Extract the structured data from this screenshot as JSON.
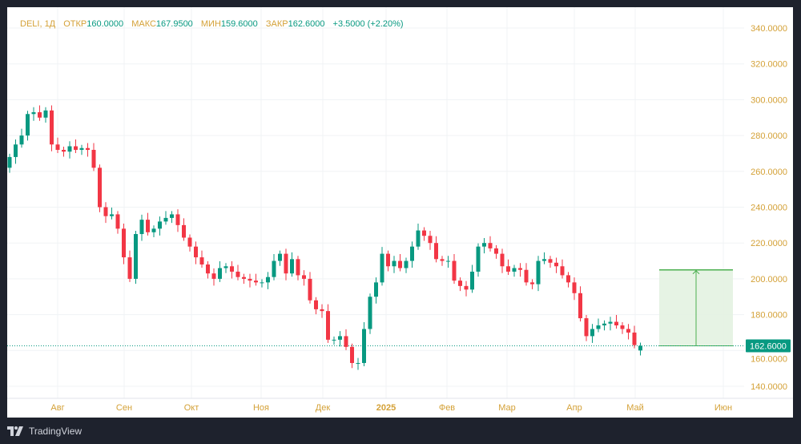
{
  "legend": {
    "symbol": "DELI, 1Д",
    "open_label": "ОТКР",
    "open": "160.0000",
    "high_label": "МАКС",
    "high": "167.9500",
    "low_label": "МИН",
    "low": "159.6000",
    "close_label": "ЗАКР",
    "close": "162.6000",
    "change": "+3.5000 (+2.20%)"
  },
  "brand": {
    "name": "TradingView"
  },
  "colors": {
    "up": "#089981",
    "down": "#f23645",
    "axis_text": "#d4a137",
    "projection_fill": "#e3f2e1",
    "projection_line": "#4caf50"
  },
  "chart_data": {
    "type": "candlestick",
    "symbol": "DELI",
    "interval": "1Д",
    "ylim": [
      140,
      340
    ],
    "y_ticks": [
      "140.0000",
      "160.0000",
      "180.0000",
      "200.0000",
      "220.0000",
      "240.0000",
      "260.0000",
      "280.0000",
      "300.0000",
      "320.0000",
      "340.0000"
    ],
    "y_tick_values": [
      140,
      160,
      180,
      200,
      220,
      240,
      260,
      280,
      300,
      320,
      340
    ],
    "x_labels": [
      "Авг",
      "Сен",
      "Окт",
      "Ноя",
      "Дек",
      "2025",
      "Фев",
      "Мар",
      "Апр",
      "Май",
      "Июн"
    ],
    "first_open": 262,
    "last_open": 160,
    "closes": [
      268,
      275,
      280,
      292,
      293,
      290,
      294,
      275,
      272,
      271,
      274,
      272,
      273,
      272,
      262,
      240,
      235,
      236,
      228,
      212,
      200,
      225,
      233,
      226,
      228,
      232,
      234,
      236,
      230,
      223,
      218,
      212,
      208,
      203,
      200,
      206,
      207,
      204,
      201,
      200,
      199,
      198,
      198,
      201,
      210,
      214,
      203,
      211,
      202,
      200,
      188,
      183,
      182,
      166,
      166,
      168,
      162,
      153,
      153,
      172,
      190,
      198,
      214,
      207,
      210,
      206,
      210,
      218,
      227,
      224,
      220,
      211,
      210,
      210,
      199,
      196,
      194,
      204,
      218,
      220,
      217,
      214,
      207,
      204,
      206,
      205,
      198,
      197,
      210,
      211,
      209,
      207,
      202,
      198,
      192,
      178,
      168,
      172,
      174,
      175,
      176,
      174,
      172,
      170,
      163,
      162.6
    ],
    "last_price_label": "162.6000",
    "last_price": 162.6,
    "projection": {
      "from": 162.6,
      "to": 205
    }
  }
}
